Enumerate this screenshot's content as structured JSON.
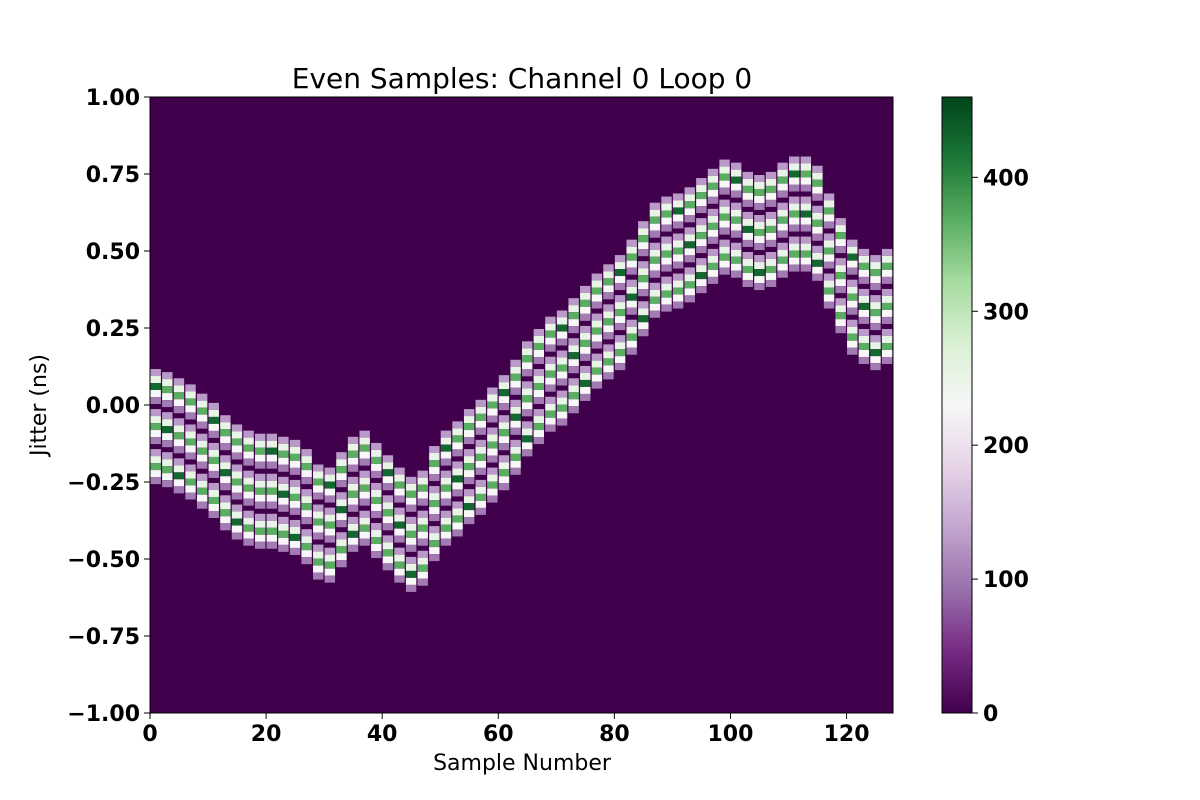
{
  "chart_data": {
    "type": "heatmap",
    "title": "Even Samples: Channel 0 Loop 0",
    "xlabel": "Sample Number",
    "ylabel": "Jitter (ns)",
    "xlim": [
      0,
      128
    ],
    "ylim": [
      -1.0,
      1.0
    ],
    "x_ticks": [
      0,
      20,
      40,
      60,
      80,
      100,
      120
    ],
    "x_tick_labels": [
      "0",
      "20",
      "40",
      "60",
      "80",
      "100",
      "120"
    ],
    "y_ticks": [
      -1.0,
      -0.75,
      -0.5,
      -0.25,
      0.0,
      0.25,
      0.5,
      0.75,
      1.0
    ],
    "y_tick_labels": [
      "−1.00",
      "−0.75",
      "−0.50",
      "−0.25",
      "0.00",
      "0.25",
      "0.50",
      "0.75",
      "1.00"
    ],
    "colorbar": {
      "range": [
        0,
        460
      ],
      "ticks": [
        0,
        100,
        200,
        300,
        400
      ],
      "tick_labels": [
        "0",
        "100",
        "200",
        "300",
        "400"
      ],
      "colormap": "PRGn",
      "colors": [
        "#40004b",
        "#762a83",
        "#9970ab",
        "#c2a5cf",
        "#e7d4e8",
        "#f7f7f7",
        "#d9f0d3",
        "#a6dba0",
        "#5aae61",
        "#1b7837",
        "#00441b"
      ]
    },
    "band_offsets_ns": [
      0.13,
      0.0,
      -0.13
    ],
    "trace_center_ns": [
      [
        0,
        -0.07
      ],
      [
        2,
        -0.08
      ],
      [
        4,
        -0.1
      ],
      [
        6,
        -0.12
      ],
      [
        8,
        -0.15
      ],
      [
        10,
        -0.18
      ],
      [
        12,
        -0.22
      ],
      [
        14,
        -0.25
      ],
      [
        16,
        -0.27
      ],
      [
        18,
        -0.28
      ],
      [
        20,
        -0.28
      ],
      [
        22,
        -0.29
      ],
      [
        24,
        -0.3
      ],
      [
        26,
        -0.33
      ],
      [
        28,
        -0.38
      ],
      [
        30,
        -0.39
      ],
      [
        32,
        -0.34
      ],
      [
        34,
        -0.29
      ],
      [
        36,
        -0.27
      ],
      [
        38,
        -0.31
      ],
      [
        40,
        -0.35
      ],
      [
        42,
        -0.39
      ],
      [
        44,
        -0.42
      ],
      [
        46,
        -0.4
      ],
      [
        48,
        -0.32
      ],
      [
        50,
        -0.27
      ],
      [
        52,
        -0.24
      ],
      [
        54,
        -0.2
      ],
      [
        56,
        -0.17
      ],
      [
        58,
        -0.13
      ],
      [
        60,
        -0.09
      ],
      [
        62,
        -0.04
      ],
      [
        64,
        0.02
      ],
      [
        66,
        0.06
      ],
      [
        68,
        0.1
      ],
      [
        70,
        0.12
      ],
      [
        72,
        0.16
      ],
      [
        74,
        0.2
      ],
      [
        76,
        0.24
      ],
      [
        78,
        0.27
      ],
      [
        80,
        0.3
      ],
      [
        82,
        0.35
      ],
      [
        84,
        0.41
      ],
      [
        86,
        0.47
      ],
      [
        88,
        0.49
      ],
      [
        90,
        0.5
      ],
      [
        92,
        0.52
      ],
      [
        94,
        0.55
      ],
      [
        96,
        0.58
      ],
      [
        98,
        0.61
      ],
      [
        100,
        0.6
      ],
      [
        102,
        0.57
      ],
      [
        104,
        0.56
      ],
      [
        106,
        0.57
      ],
      [
        108,
        0.6
      ],
      [
        110,
        0.62
      ],
      [
        112,
        0.62
      ],
      [
        114,
        0.59
      ],
      [
        116,
        0.5
      ],
      [
        118,
        0.42
      ],
      [
        120,
        0.35
      ],
      [
        122,
        0.32
      ],
      [
        124,
        0.3
      ],
      [
        126,
        0.32
      ]
    ]
  }
}
